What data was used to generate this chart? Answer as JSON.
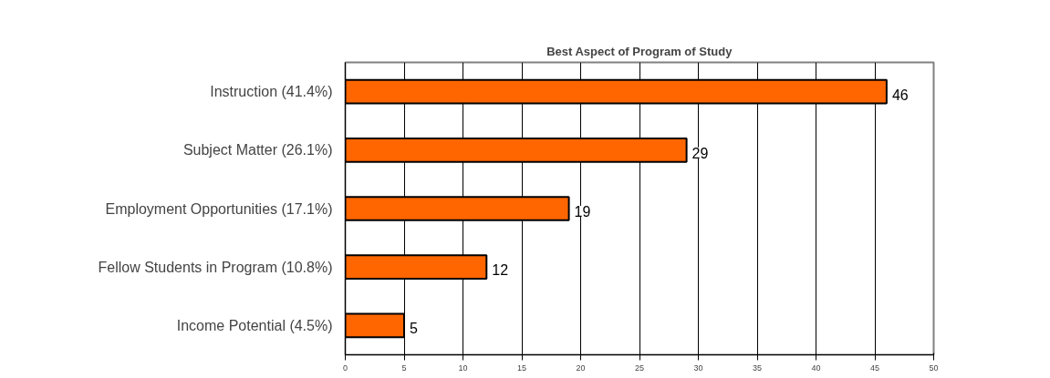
{
  "chart_data": {
    "type": "bar",
    "orientation": "horizontal",
    "title": "Best Aspect of Program of Study",
    "categories": [
      "Instruction (41.4%)",
      "Subject Matter (26.1%)",
      "Employment Opportunities (17.1%)",
      "Fellow Students in Program (10.8%)",
      "Income Potential (4.5%)"
    ],
    "values": [
      46,
      29,
      19,
      12,
      5
    ],
    "color": "#ff6600",
    "xlim": [
      0,
      50
    ],
    "xticks": [
      0,
      5,
      10,
      15,
      20,
      25,
      30,
      35,
      40,
      45,
      50
    ],
    "grid": "x",
    "data_labels": true
  }
}
